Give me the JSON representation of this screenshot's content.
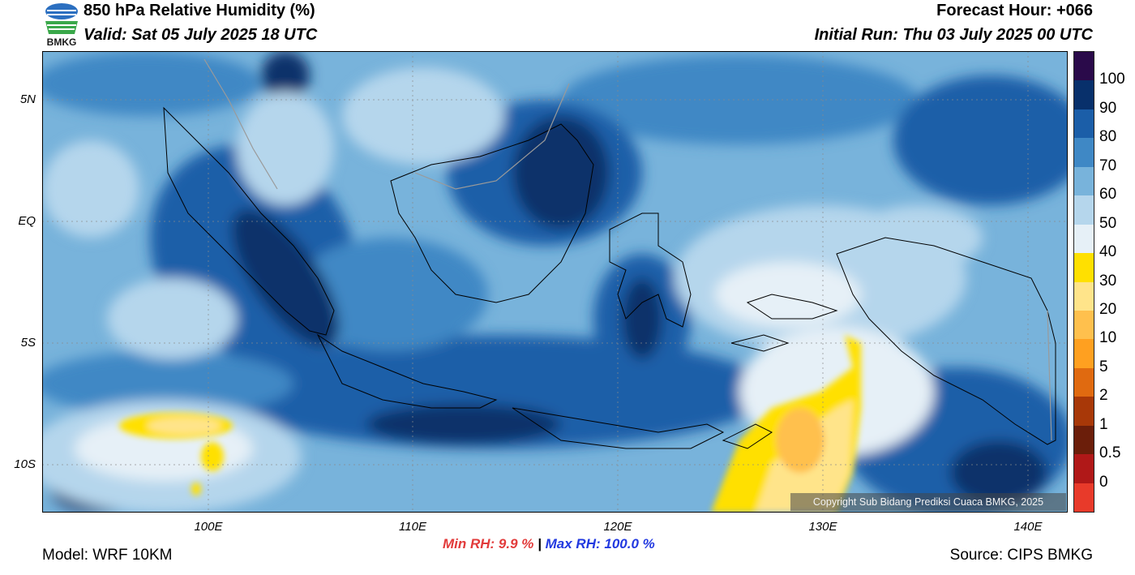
{
  "header": {
    "title": "850 hPa Relative Humidity (%)",
    "valid": "Valid: Sat 05 July 2025 18 UTC",
    "forecast_hour": "Forecast Hour: +066",
    "initial_run": "Initial Run: Thu 03 July 2025 00 UTC",
    "logo_text": "BMKG"
  },
  "axes": {
    "lat_labels": [
      "5N",
      "EQ",
      "5S",
      "10S"
    ],
    "lon_labels": [
      "100E",
      "110E",
      "120E",
      "130E",
      "140E"
    ]
  },
  "colorbar": {
    "labels": [
      "100",
      "90",
      "80",
      "70",
      "60",
      "50",
      "40",
      "30",
      "20",
      "10",
      "5",
      "2",
      "1",
      "0.5",
      "0"
    ],
    "colors": [
      "#2a0a4a",
      "#08306b",
      "#1b5ea8",
      "#3f88c5",
      "#78b3db",
      "#b5d6ec",
      "#e6f0f7",
      "#ffe000",
      "#ffe48a",
      "#ffc04d",
      "#ffa020",
      "#e06a10",
      "#a83808",
      "#6b1e0a",
      "#b01818",
      "#e83a2a"
    ]
  },
  "footer": {
    "min_rh_label": "Min RH:   9.9 %",
    "separator": "|",
    "max_rh_label": "Max RH: 100.0 %",
    "model": "Model: WRF 10KM",
    "source": "Source: CIPS BMKG",
    "copyright": "Copyright Sub Bidang Prediksi Cuaca BMKG, 2025"
  }
}
